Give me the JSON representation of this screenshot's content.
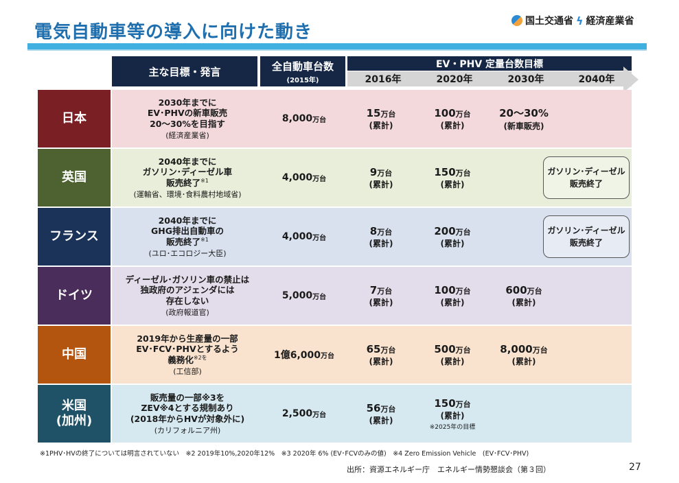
{
  "title": "電気自動車等の導入に向けた動き",
  "logo": {
    "text": "国土交通省",
    "text2": "経済産業省"
  },
  "header": {
    "goal_label": "主な目標・発言",
    "total_label": "全自動車台数",
    "total_sub": "(2015年)",
    "target_label": "EV・PHV 定量台数目標",
    "years": [
      "2016年",
      "2020年",
      "2030年",
      "2040年"
    ]
  },
  "countries": [
    {
      "name": "日本",
      "goal_lines": [
        "2030年までに",
        "EV･PHVの新車販売",
        "20～30%を目指す"
      ],
      "goal_sup": "",
      "source": "(経済産業省)",
      "total_num": "8,000",
      "total_unit": "万台",
      "v2016": "15",
      "u2016": "万台",
      "n2016": "(累計)",
      "v2020": "100",
      "u2020": "万台",
      "n2020": "(累計)",
      "v2030": "20～30%",
      "u2030": "",
      "n2030": "(新車販売)",
      "bracket": [
        "",
        ""
      ],
      "note2020": ""
    },
    {
      "name": "英国",
      "goal_lines": [
        "2040年までに",
        "ガソリン･ディーゼル車",
        "販売終了"
      ],
      "goal_sup": "※1",
      "source": "(運輸省、環境･食料農村地域省)",
      "total_num": "4,000",
      "total_unit": "万台",
      "v2016": "9",
      "u2016": "万台",
      "n2016": "(累計)",
      "v2020": "150",
      "u2020": "万台",
      "n2020": "(累計)",
      "v2030": "",
      "u2030": "",
      "n2030": "",
      "bracket": [
        "ガソリン･ディーゼル",
        "販売終了"
      ],
      "note2020": ""
    },
    {
      "name": "フランス",
      "goal_lines": [
        "2040年までに",
        "GHG排出自動車の",
        "販売終了"
      ],
      "goal_sup": "※1",
      "source": "(ユロ･エコロジー大臣)",
      "total_num": "4,000",
      "total_unit": "万台",
      "v2016": "8",
      "u2016": "万台",
      "n2016": "(累計)",
      "v2020": "200",
      "u2020": "万台",
      "n2020": "(累計)",
      "v2030": "",
      "u2030": "",
      "n2030": "",
      "bracket": [
        "ガソリン･ディーゼル",
        "販売終了"
      ],
      "note2020": ""
    },
    {
      "name": "ドイツ",
      "goal_lines": [
        "ディーゼル･ガソリン車の禁止は",
        "独政府のアジェンダには",
        "存在しない"
      ],
      "goal_sup": "",
      "source": "(政府報道官)",
      "total_num": "5,000",
      "total_unit": "万台",
      "v2016": "7",
      "u2016": "万台",
      "n2016": "(累計)",
      "v2020": "100",
      "u2020": "万台",
      "n2020": "(累計)",
      "v2030": "600",
      "u2030": "万台",
      "n2030": "(累計)",
      "bracket": [
        "",
        ""
      ],
      "note2020": ""
    },
    {
      "name": "中国",
      "goal_lines": [
        "2019年から生産量の一部",
        "EV･FCV･PHVとするよう",
        "義務化"
      ],
      "goal_sup": "※2を",
      "source": "(工信部)",
      "total_num": "1億6,000",
      "total_unit": "万台",
      "v2016": "65",
      "u2016": "万台",
      "n2016": "(累計)",
      "v2020": "500",
      "u2020": "万台",
      "n2020": "(累計)",
      "v2030": "8,000",
      "u2030": "万台",
      "n2030": "(累計)",
      "bracket": [
        "",
        ""
      ],
      "note2020": ""
    },
    {
      "name": "米国\n(加州)",
      "goal_lines": [
        "販売量の一部※3を",
        "ZEV※4とする規制あり",
        "(2018年からHVが対象外に)"
      ],
      "goal_sup": "",
      "source": "(カリフォルニア州)",
      "total_num": "2,500",
      "total_unit": "万台",
      "v2016": "56",
      "u2016": "万台",
      "n2016": "(累計)",
      "v2020": "150",
      "u2020": "万台",
      "n2020": "(累計)",
      "v2030": "",
      "u2030": "",
      "n2030": "",
      "bracket": [
        "",
        ""
      ],
      "note2020": "※2025年の目標"
    }
  ],
  "footnote": "※1PHV･HVの終了については明言されていない　※2 2019年10%,2020年12%　※3 2020年 6% (EV･FCVのみの値)　※4 Zero Emission Vehicle　(EV･FCV･PHV)",
  "source": "出所：資源エネルギー庁　エネルギー情勢懇談会（第３回）",
  "page_number": "27",
  "colors": {
    "header_dark": "#152744",
    "title_blue": "#1f6fae",
    "rows": [
      {
        "country": "#7a1f24",
        "body": "#f4d9dc"
      },
      {
        "country": "#4e6130",
        "body": "#e8eed9"
      },
      {
        "country": "#1c3359",
        "body": "#d9e1ef"
      },
      {
        "country": "#4a2d5a",
        "body": "#e3dcea"
      },
      {
        "country": "#b3550f",
        "body": "#f9e3cf"
      },
      {
        "country": "#1f5266",
        "body": "#d6e9f1"
      }
    ]
  }
}
